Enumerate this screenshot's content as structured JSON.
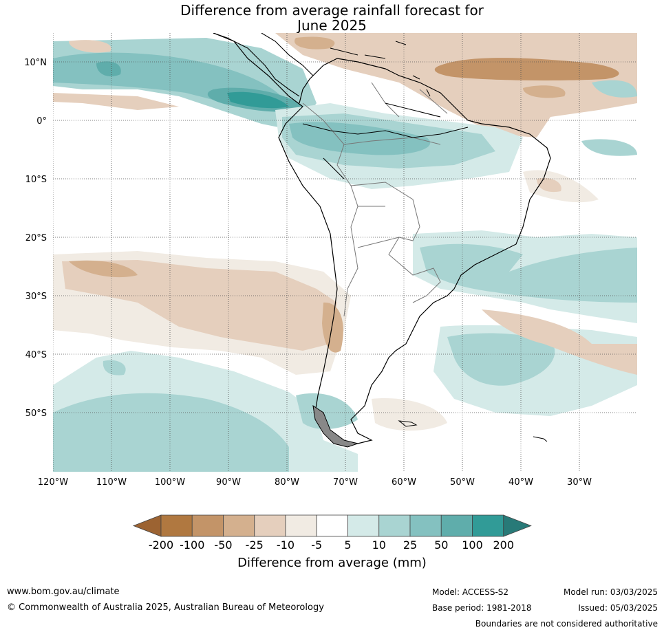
{
  "title": {
    "line1": "Difference from average rainfall forecast for",
    "line2": "June 2025"
  },
  "lat_labels": [
    "10°N",
    "0°",
    "10°S",
    "20°S",
    "30°S",
    "40°S",
    "50°S"
  ],
  "lon_labels": [
    "120°W",
    "110°W",
    "100°W",
    "90°W",
    "80°W",
    "70°W",
    "60°W",
    "50°W",
    "40°W",
    "30°W"
  ],
  "colorbar": {
    "ticks": [
      "-200",
      "-100",
      "-50",
      "-25",
      "-10",
      "-5",
      "5",
      "10",
      "25",
      "50",
      "100",
      "200"
    ],
    "colors": [
      "#9c6332",
      "#b07840",
      "#c39468",
      "#d4b08e",
      "#e5cfbd",
      "#f1ebe3",
      "#ffffff",
      "#d4eae8",
      "#a9d4d2",
      "#84c1c0",
      "#5fadab",
      "#319b97",
      "#287a78"
    ],
    "title": "Difference from average (mm)"
  },
  "footer": {
    "website": "www.bom.gov.au/climate",
    "copyright": "© Commonwealth of Australia 2025, Australian Bureau of Meteorology",
    "model": "Model: ACCESS-S2",
    "base_period": "Base period: 1981-2018",
    "model_run": "Model run: 03/03/2025",
    "issued": "Issued: 05/03/2025",
    "disclaimer": "Boundaries are not considered authoritative"
  }
}
